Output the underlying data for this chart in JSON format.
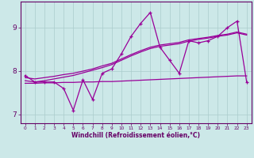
{
  "xlabel": "Windchill (Refroidissement éolien,°C)",
  "x": [
    0,
    1,
    2,
    3,
    4,
    5,
    6,
    7,
    8,
    9,
    10,
    11,
    12,
    13,
    14,
    15,
    16,
    17,
    18,
    19,
    20,
    21,
    22,
    23
  ],
  "y_main": [
    7.9,
    7.75,
    7.75,
    7.75,
    7.6,
    7.1,
    7.8,
    7.35,
    7.95,
    8.05,
    8.4,
    8.8,
    9.1,
    9.35,
    8.55,
    8.25,
    7.95,
    8.7,
    8.65,
    8.7,
    8.8,
    9.0,
    9.15,
    7.75
  ],
  "y_trend1": [
    7.85,
    7.82,
    7.85,
    7.88,
    7.92,
    7.95,
    8.0,
    8.05,
    8.12,
    8.18,
    8.28,
    8.38,
    8.47,
    8.55,
    8.6,
    8.63,
    8.66,
    8.72,
    8.75,
    8.78,
    8.82,
    8.85,
    8.9,
    8.85
  ],
  "y_trend2": [
    7.78,
    7.75,
    7.78,
    7.82,
    7.86,
    7.9,
    7.96,
    8.02,
    8.08,
    8.15,
    8.25,
    8.35,
    8.44,
    8.52,
    8.57,
    8.6,
    8.63,
    8.69,
    8.73,
    8.76,
    8.8,
    8.83,
    8.88,
    8.83
  ],
  "y_flat": [
    7.72,
    7.72,
    7.73,
    7.73,
    7.74,
    7.74,
    7.75,
    7.75,
    7.76,
    7.76,
    7.77,
    7.78,
    7.79,
    7.8,
    7.81,
    7.82,
    7.83,
    7.84,
    7.85,
    7.86,
    7.87,
    7.88,
    7.89,
    7.89
  ],
  "bg_color": "#cce8e8",
  "line_color": "#990099",
  "grid_color": "#aacccc",
  "axis_color": "#660066",
  "ylim": [
    6.8,
    9.6
  ],
  "yticks": [
    7,
    8,
    9
  ],
  "xlim": [
    -0.5,
    23.5
  ]
}
